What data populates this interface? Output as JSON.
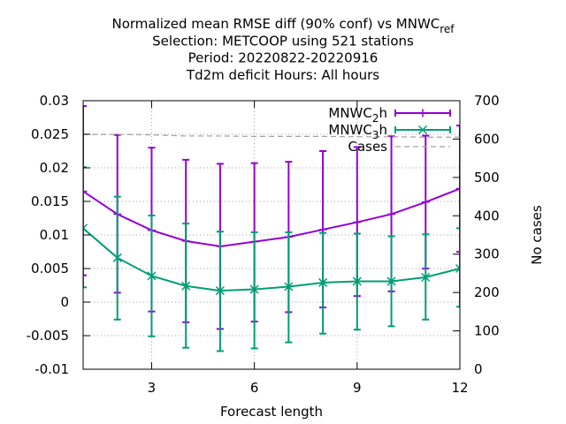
{
  "chart_data": {
    "type": "line",
    "title_lines": [
      "Normalized mean RMSE diff (90% conf) vs MNWC",
      "Selection: METCOOP using   521 stations",
      "Period: 20220822-20220916",
      "Td2m deficit   Hours:  All hours"
    ],
    "title_subscript": "ref",
    "xlabel": "Forecast length",
    "ylabel": "",
    "y2label": "No cases",
    "xlim": [
      1,
      12
    ],
    "ylim": [
      -0.01,
      0.03
    ],
    "y2lim": [
      0,
      700
    ],
    "x_ticks": [
      3,
      6,
      9,
      12
    ],
    "y_ticks": [
      -0.01,
      -0.005,
      0,
      0.005,
      0.01,
      0.015,
      0.02,
      0.025,
      0.03
    ],
    "y_tick_labels": [
      "-0.01",
      "-0.005",
      "0",
      "0.005",
      "0.01",
      "0.015",
      "0.02",
      "0.025",
      "0.03"
    ],
    "y2_ticks": [
      0,
      100,
      200,
      300,
      400,
      500,
      600,
      700
    ],
    "grid": true,
    "legend_position": "top-right",
    "x": [
      1,
      2,
      3,
      4,
      5,
      6,
      7,
      8,
      9,
      10,
      11,
      12
    ],
    "series": [
      {
        "name": "MNWC",
        "name_subscript": "2",
        "name_suffix": "h",
        "color": "#9400d3",
        "marker": "plus",
        "values": [
          0.0165,
          0.0131,
          0.0107,
          0.0091,
          0.0083,
          0.009,
          0.0097,
          0.0108,
          0.0119,
          0.0131,
          0.0149,
          0.0169
        ],
        "err_low": [
          0.004,
          0.0014,
          -0.0014,
          -0.003,
          -0.004,
          -0.0029,
          -0.0015,
          -0.0008,
          0.0009,
          0.0016,
          0.005,
          0.0075
        ],
        "err_high": [
          0.0292,
          0.0249,
          0.023,
          0.0212,
          0.0206,
          0.0207,
          0.0209,
          0.0225,
          0.0231,
          0.0247,
          0.0248,
          0.0263
        ]
      },
      {
        "name": "MNWC",
        "name_subscript": "3",
        "name_suffix": "h",
        "color": "#009e73",
        "marker": "cross",
        "values": [
          0.011,
          0.0066,
          0.0039,
          0.0024,
          0.0017,
          0.0019,
          0.0023,
          0.0029,
          0.0031,
          0.0031,
          0.0037,
          0.005
        ],
        "err_low": [
          0.0022,
          -0.0026,
          -0.0051,
          -0.0068,
          -0.0073,
          -0.0069,
          -0.006,
          -0.0047,
          -0.0041,
          -0.0036,
          -0.0026,
          -0.0007
        ],
        "err_high": [
          0.0201,
          0.0157,
          0.0129,
          0.0117,
          0.0105,
          0.0104,
          0.0104,
          0.0103,
          0.0102,
          0.0098,
          0.0101,
          0.011
        ]
      },
      {
        "name": "Cases",
        "color": "#a0a0a0",
        "dashed": true,
        "axis": "y2",
        "values": [
          612,
          612,
          611,
          608,
          608,
          607,
          607,
          607,
          606,
          606,
          605,
          605
        ]
      }
    ]
  }
}
